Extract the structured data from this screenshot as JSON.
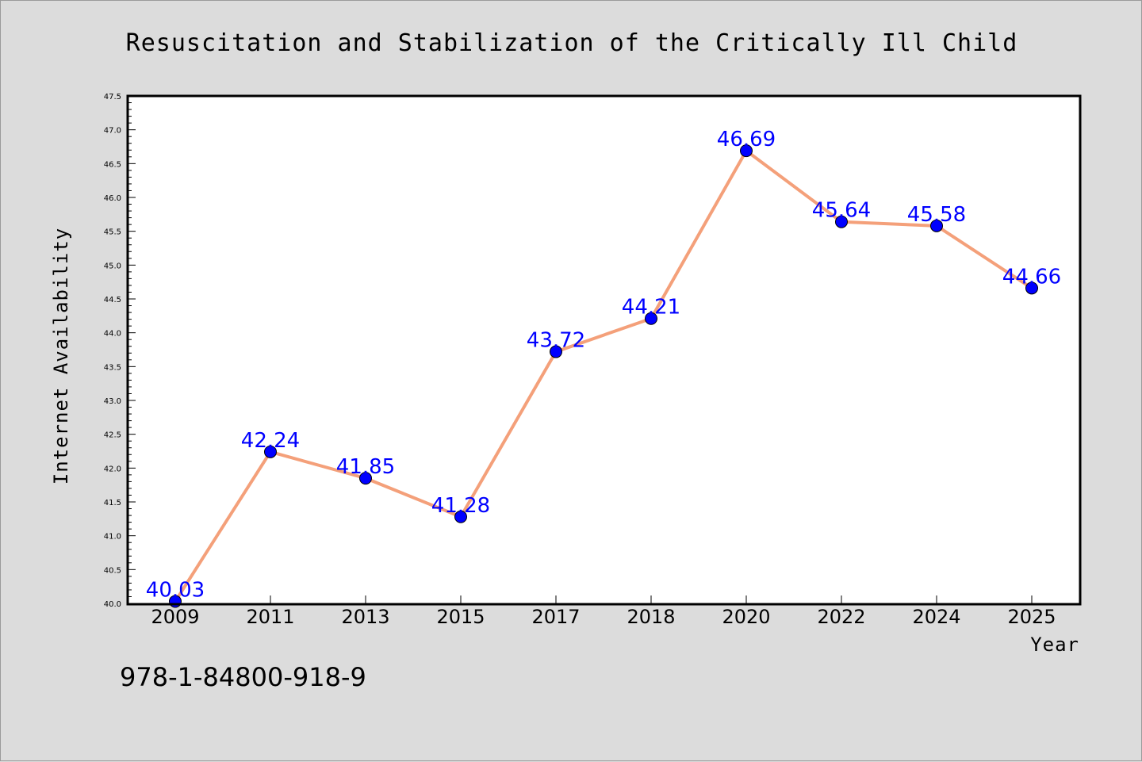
{
  "chart_data": {
    "type": "line",
    "title": "Resuscitation and Stabilization of the Critically Ill Child",
    "xlabel": "Year",
    "ylabel": "Internet Availability",
    "categories": [
      "2009",
      "2011",
      "2013",
      "2015",
      "2017",
      "2018",
      "2020",
      "2022",
      "2024",
      "2025"
    ],
    "series": [
      {
        "values": [
          40.03,
          42.24,
          41.85,
          41.28,
          43.72,
          44.21,
          46.69,
          45.64,
          45.58,
          44.66
        ],
        "data_labels": [
          "40.03",
          "42.24",
          "41.85",
          "41.28",
          "43.72",
          "44.21",
          "46.69",
          "45.64",
          "45.58",
          "44.66"
        ],
        "line_color": "#f4a07a",
        "marker_color": "#0000ff"
      }
    ],
    "ylim": [
      40.0,
      47.5
    ],
    "yticks": [
      "40.0",
      "40.5",
      "41.0",
      "41.5",
      "42.0",
      "42.5",
      "43.0",
      "43.5",
      "44.0",
      "44.5",
      "45.0",
      "45.5",
      "46.0",
      "46.5",
      "47.0",
      "47.5"
    ],
    "grid": false,
    "label_color": "#0000ff",
    "background": "#dcdcdc",
    "plot_background": "#ffffff"
  },
  "footer": {
    "isbn": "978-1-84800-918-9"
  }
}
